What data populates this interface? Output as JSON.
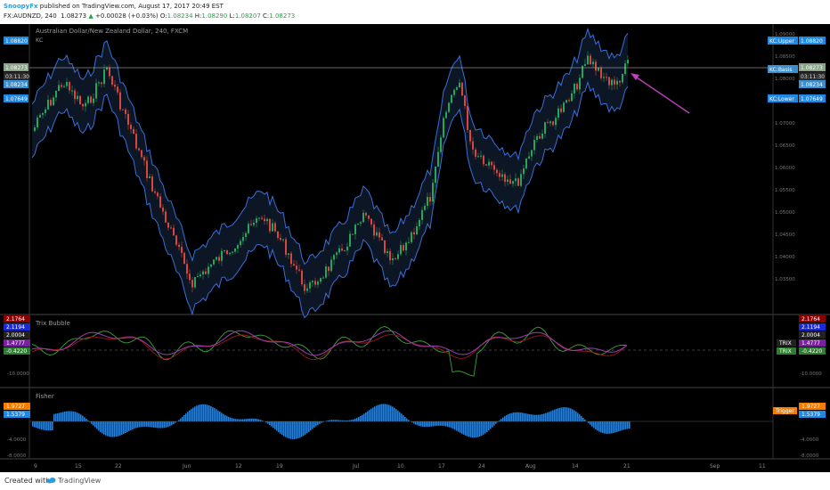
{
  "header": {
    "author": "SnoopyFx",
    "published_text": "published on TradingView.com, August 17, 2017 20:49 EST",
    "symbol": "FX:AUDNZD, 240",
    "last": "1.08273",
    "change_arrow": "▲",
    "change": "+0.00028 (+0.03%)",
    "o_label": "O:",
    "o_value": "1.08234",
    "h_label": "H:",
    "h_value": "1.08290",
    "l_label": "L:",
    "l_value": "1.08207",
    "c_label": "C:",
    "c_value": "1.08273"
  },
  "main_pane": {
    "title": "Australian Dollar/New Zealand Dollar, 240, FXCM",
    "indicator_name": "KC",
    "left_tags": [
      "1.08820",
      "1.08273",
      "03:11:30",
      "1.08234",
      "1.07649"
    ],
    "right_tags": [
      "1.08820",
      "1.08273",
      "03:11:30",
      "1.08234",
      "1.07649"
    ],
    "band_labels": [
      "KC:Upper",
      "KC:Basis",
      "KC:Lower"
    ],
    "price_ticks": [
      "1.09000",
      "1.08500",
      "1.08000",
      "1.07500",
      "1.07000",
      "1.06500",
      "1.06000",
      "1.05500",
      "1.05000",
      "1.04500",
      "1.04000",
      "1.03500"
    ]
  },
  "trix_pane": {
    "title": "Trix Bubble",
    "left_tags": [
      "2.1764",
      "2.1194",
      "2.0004",
      "1.4777",
      "-0.4220"
    ],
    "right_tags": [
      "2.1764",
      "2.1194",
      "2.0004",
      "1.4777",
      "-0.4220"
    ],
    "right_labels": [
      "TRIX",
      "TRIX"
    ],
    "ticks": [
      "10.0000",
      "-10.0000",
      "10.0000",
      "-10.0000"
    ]
  },
  "fisher_pane": {
    "title": "Fisher",
    "left_tags": [
      "1.9727",
      "1.5379"
    ],
    "right_tags": [
      "1.9727",
      "1.5379"
    ],
    "trigger_label": "Trigger",
    "ticks": [
      "4.0000",
      "0.0000",
      "-4.0000",
      "-8.0000"
    ]
  },
  "time_axis": [
    "9",
    "15",
    "22",
    "Jun",
    "12",
    "19",
    "Jul",
    "10",
    "17",
    "24",
    "Aug",
    "14",
    "21",
    "Sep",
    "11"
  ],
  "footer": {
    "created": "Created with",
    "brand": "TradingView"
  },
  "colors": {
    "band": "#3a6fd8",
    "up": "#26a65b",
    "down": "#d9463b",
    "arrow": "#c040c0",
    "trix_purple": "#9b3fb5",
    "trix_green": "#3aa33a",
    "fisher_fill": "#2f7fd0",
    "tag_blue": "#1e88e5",
    "tag_green": "#2e7d32",
    "tag_red": "#8b0000",
    "tag_purple": "#7b1fa2",
    "tag_orange": "#f57c00"
  }
}
